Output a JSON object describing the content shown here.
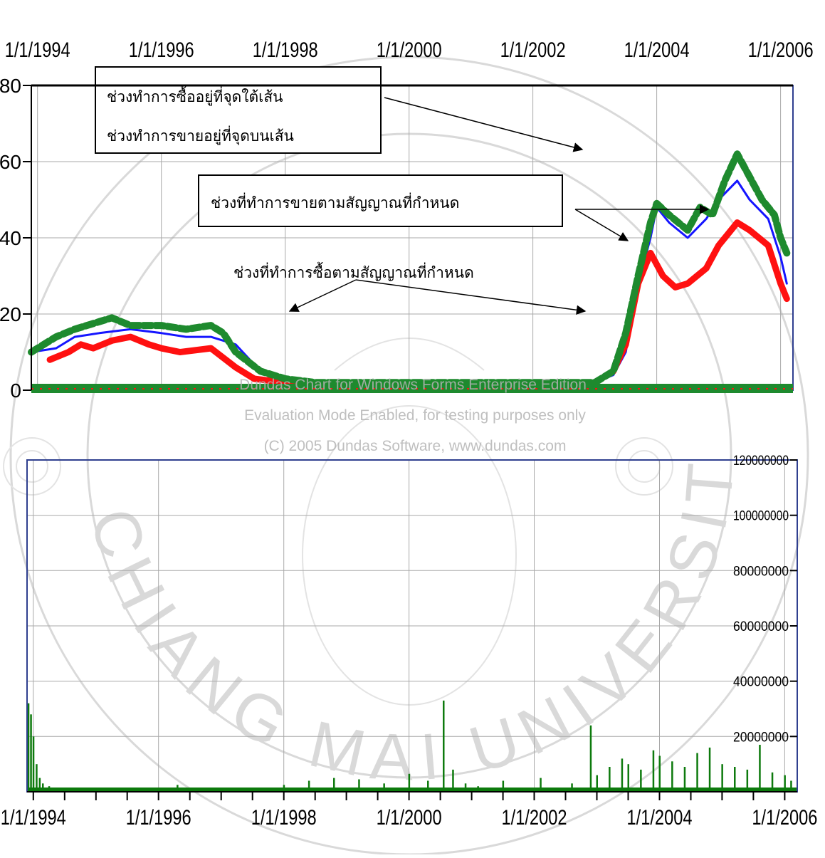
{
  "colors": {
    "upper_band": "#1515ff",
    "lower_band": "#ff1010",
    "price": "#1e8a2e",
    "volume": "#0d7a0d",
    "grid": "#a9a9a9",
    "axis": "#000000",
    "frame_top": "#000000",
    "frame_side": "#2f3f8f",
    "watermark": "#b4b4b4"
  },
  "watermark": {
    "university": "CHIANG MAI UNIVERSITY 1964",
    "vendor_lines": [
      "Dundas Chart for Windows Forms Enterprise Edition",
      "Evaluation Mode Enabled, for testing purposes only",
      "(C) 2005 Dundas Software, www.dundas.com"
    ]
  },
  "annotations": {
    "box1_line1": "ช่วงทำการซื้ออยู่ที่จุดใต้เส้น",
    "box1_line2": "ช่วงทำการขายอยู่ที่จุดบนเส้น",
    "sell_signal": "ช่วงที่ทำการขายตามสัญญาณที่กำหนด",
    "buy_signal": "ช่วงที่ทำการซื้อตามสัญญาณที่กำหนด"
  },
  "chart_data": [
    {
      "type": "line",
      "x_tick_labels": [
        "1/1/1994",
        "1/1/1996",
        "1/1/1998",
        "1/1/2000",
        "1/1/2002",
        "1/1/2004",
        "1/1/2006"
      ],
      "x_ticks": [
        1994,
        1996,
        1998,
        2000,
        2002,
        2004,
        2006
      ],
      "xlim": [
        1993.9,
        2006.2
      ],
      "y_tick_labels": [
        "0",
        "20",
        "40",
        "60",
        "80"
      ],
      "y_ticks": [
        0,
        20,
        40,
        60,
        80
      ],
      "ylim": [
        0,
        80
      ],
      "grid": true,
      "series": [
        {
          "color_key": "upper_band",
          "x": [
            1993.9,
            1994.3,
            1994.6,
            1995.0,
            1995.5,
            1996.0,
            1996.4,
            1996.8,
            1997.2,
            1997.6,
            1998.0,
            1998.5,
            1999.0,
            2000.0,
            2001.0,
            2002.0,
            2002.5,
            2003.0,
            2003.3,
            2003.5,
            2003.7,
            2003.9,
            2004.0,
            2004.2,
            2004.5,
            2004.8,
            2005.0,
            2005.3,
            2005.5,
            2005.8,
            2006.0,
            2006.1
          ],
          "y": [
            10,
            11,
            14,
            15,
            16,
            15,
            14,
            14,
            12,
            5,
            3,
            2,
            1.5,
            1.5,
            1.5,
            1.5,
            2,
            2,
            4,
            10,
            28,
            40,
            48,
            44,
            40,
            45,
            50,
            55,
            50,
            45,
            35,
            28
          ]
        },
        {
          "color_key": "lower_band",
          "x": [
            1994.2,
            1994.5,
            1994.7,
            1994.9,
            1995.2,
            1995.5,
            1995.8,
            1996.0,
            1996.3,
            1996.8,
            1997.2,
            1997.5,
            1998.0,
            1998.5,
            1999.0,
            2000.0,
            2001.0,
            2002.0,
            2002.5,
            2003.0,
            2003.3,
            2003.5,
            2003.7,
            2003.9,
            2004.1,
            2004.3,
            2004.5,
            2004.8,
            2005.0,
            2005.3,
            2005.5,
            2005.8,
            2006.0,
            2006.1
          ],
          "y": [
            8,
            10,
            12,
            11,
            13,
            14,
            12,
            11,
            10,
            11,
            6,
            3,
            2,
            1,
            1,
            1,
            1,
            1,
            1.5,
            2,
            5,
            12,
            28,
            36,
            30,
            27,
            28,
            32,
            38,
            44,
            42,
            38,
            28,
            24
          ]
        },
        {
          "color_key": "price",
          "x": [
            1993.9,
            1994.3,
            1994.6,
            1995.0,
            1995.2,
            1995.5,
            1996.0,
            1996.4,
            1996.8,
            1997.0,
            1997.2,
            1997.6,
            1998.0,
            1998.5,
            1999.0,
            2000.0,
            2001.0,
            2002.0,
            2002.5,
            2003.0,
            2003.3,
            2003.5,
            2003.7,
            2003.9,
            2004.0,
            2004.2,
            2004.5,
            2004.7,
            2004.9,
            2005.1,
            2005.3,
            2005.5,
            2005.7,
            2005.9,
            2006.0,
            2006.1
          ],
          "y": [
            10,
            14,
            16,
            18,
            19,
            17,
            17,
            16,
            17,
            15,
            10,
            5,
            3,
            2,
            2,
            2,
            2,
            2,
            2,
            2,
            5,
            15,
            30,
            44,
            49,
            46,
            42,
            48,
            46,
            55,
            62,
            56,
            50,
            46,
            40,
            36
          ]
        }
      ]
    },
    {
      "type": "bar",
      "x_tick_labels": [
        "1/1/1994",
        "1/1/1996",
        "1/1/1998",
        "1/1/2000",
        "1/1/2002",
        "1/1/2004",
        "1/1/2006"
      ],
      "x_ticks": [
        1994,
        1996,
        1998,
        2000,
        2002,
        2004,
        2006
      ],
      "xlim": [
        1993.9,
        2006.2
      ],
      "y_tick_labels": [
        "20000000",
        "40000000",
        "60000000",
        "80000000",
        "100000000",
        "120000000"
      ],
      "y_ticks": [
        20000000,
        40000000,
        60000000,
        80000000,
        100000000,
        120000000
      ],
      "ylim": [
        0,
        120000000
      ],
      "grid": true,
      "color_key": "volume",
      "x": [
        1993.92,
        1993.96,
        1994.0,
        1994.05,
        1994.1,
        1994.15,
        1994.25,
        1994.5,
        1995.0,
        1995.6,
        1996.3,
        1997.0,
        1997.6,
        1998.0,
        1998.4,
        1998.8,
        1999.2,
        1999.6,
        2000.0,
        2000.3,
        2000.55,
        2000.7,
        2000.9,
        2001.1,
        2001.5,
        2001.8,
        2002.1,
        2002.6,
        2002.9,
        2003.0,
        2003.2,
        2003.4,
        2003.5,
        2003.7,
        2003.9,
        2004.0,
        2004.2,
        2004.4,
        2004.6,
        2004.8,
        2005.0,
        2005.2,
        2005.4,
        2005.6,
        2005.8,
        2006.0,
        2006.1
      ],
      "values": [
        32000000,
        28000000,
        20000000,
        10000000,
        5000000,
        3000000,
        2000000,
        1000000,
        800000,
        1200000,
        2500000,
        1000000,
        1500000,
        2500000,
        4000000,
        5000000,
        4500000,
        3000000,
        6500000,
        4000000,
        33000000,
        8000000,
        3000000,
        2000000,
        4000000,
        1500000,
        5000000,
        3000000,
        24000000,
        6000000,
        9000000,
        12000000,
        10000000,
        8000000,
        15000000,
        13000000,
        11000000,
        9000000,
        14000000,
        16000000,
        10000000,
        9000000,
        8000000,
        17000000,
        7000000,
        6000000,
        4000000
      ]
    }
  ]
}
